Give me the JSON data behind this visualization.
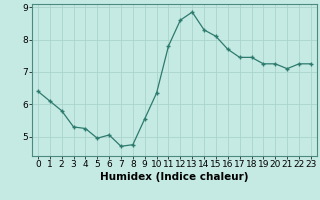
{
  "x": [
    0,
    1,
    2,
    3,
    4,
    5,
    6,
    7,
    8,
    9,
    10,
    11,
    12,
    13,
    14,
    15,
    16,
    17,
    18,
    19,
    20,
    21,
    22,
    23
  ],
  "y": [
    6.4,
    6.1,
    5.8,
    5.3,
    5.25,
    4.95,
    5.05,
    4.7,
    4.75,
    5.55,
    6.35,
    7.8,
    8.6,
    8.85,
    8.3,
    8.1,
    7.7,
    7.45,
    7.45,
    7.25,
    7.25,
    7.1,
    7.25,
    7.25
  ],
  "bg_color": "#c5eae3",
  "line_color": "#2d7a6e",
  "marker_color": "#2d7a6e",
  "xlabel": "Humidex (Indice chaleur)",
  "xlim": [
    -0.5,
    23.5
  ],
  "ylim": [
    4.4,
    9.1
  ],
  "grid_color": "#aad4cc",
  "xticks": [
    0,
    1,
    2,
    3,
    4,
    5,
    6,
    7,
    8,
    9,
    10,
    11,
    12,
    13,
    14,
    15,
    16,
    17,
    18,
    19,
    20,
    21,
    22,
    23
  ],
  "yticks": [
    5,
    6,
    7,
    8,
    9
  ],
  "tick_fontsize": 6.5,
  "label_fontsize": 7.5
}
